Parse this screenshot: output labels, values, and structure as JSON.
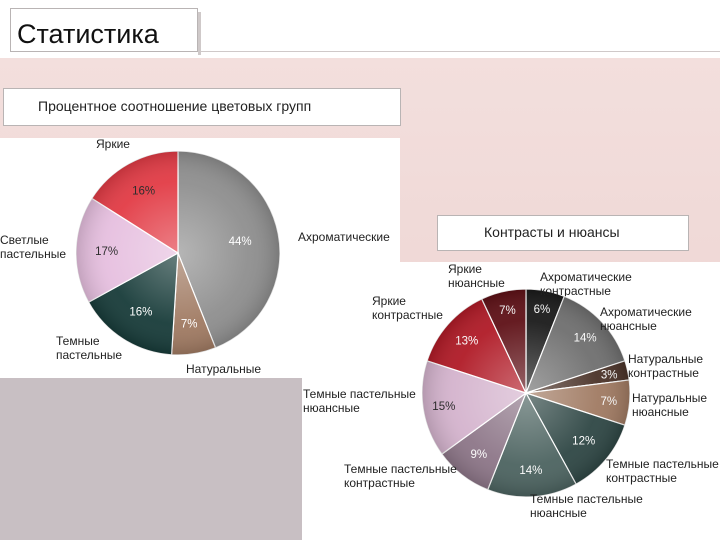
{
  "page": {
    "title": "Статистика",
    "subtitle_left": "Процентное соотношение цветовых групп",
    "subtitle_right": "Контрасты и нюансы"
  },
  "chart_data": [
    {
      "type": "pie",
      "title": "Процентное соотношение цветовых групп",
      "slices": [
        {
          "label": [
            "Ахроматические"
          ],
          "value": 44,
          "text": "44%",
          "color": "#8e8e8e"
        },
        {
          "label": [
            "Натуральные"
          ],
          "value": 7,
          "text": "7%",
          "color": "#a07a62"
        },
        {
          "label": [
            "Темные",
            "пастельные"
          ],
          "value": 16,
          "text": "16%",
          "color": "#173b39"
        },
        {
          "label": [
            "Светлые",
            "пастельные"
          ],
          "value": 17,
          "text": "17%",
          "color": "#e6bfdf"
        },
        {
          "label": [
            "Яркие"
          ],
          "value": 16,
          "text": "16%",
          "color": "#e23b45"
        }
      ]
    },
    {
      "type": "pie",
      "title": "Контрасты и нюансы",
      "slices": [
        {
          "label": [
            "Ахроматические",
            "контрастные"
          ],
          "value": 6,
          "text": "6%",
          "color": "#1a1a1a"
        },
        {
          "label": [
            "Ахроматические",
            "нюансные"
          ],
          "value": 14,
          "text": "14%",
          "color": "#6f6f6f"
        },
        {
          "label": [
            "Натуральные",
            "контрастные"
          ],
          "value": 3,
          "text": "3%",
          "color": "#4a3228"
        },
        {
          "label": [
            "Натуральные",
            "нюансные"
          ],
          "value": 7,
          "text": "7%",
          "color": "#a07a62"
        },
        {
          "label": [
            "Темные пастельные",
            "контрастные"
          ],
          "value": 12,
          "text": "12%",
          "color": "#2e4644"
        },
        {
          "label": [
            "Темные пастельные",
            "нюансные"
          ],
          "value": 14,
          "text": "14%",
          "color": "#4c6360"
        },
        {
          "label": [
            "Темные пастельные",
            "контрастные"
          ],
          "value": 9,
          "text": "9%",
          "color": "#8d7688"
        },
        {
          "label": [
            "Темные пастельные",
            "нюансные"
          ],
          "value": 15,
          "text": "15%",
          "color": "#d4b3cd"
        },
        {
          "label": [
            "Яркие",
            "контрастные"
          ],
          "value": 13,
          "text": "13%",
          "color": "#b01a26"
        },
        {
          "label": [
            "Яркие",
            "нюансные"
          ],
          "value": 7,
          "text": "7%",
          "color": "#5e1016"
        }
      ]
    }
  ]
}
